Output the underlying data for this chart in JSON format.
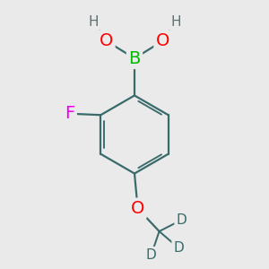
{
  "background_color": "#eaeaea",
  "bond_color": "#3a6b6b",
  "bond_width": 1.6,
  "atom_colors": {
    "B": "#00bb00",
    "O": "#ff0000",
    "F": "#ee00ee",
    "H": "#607070",
    "C": "#3a6b6b",
    "D": "#3a6b6b"
  },
  "font_size_large": 14,
  "font_size_medium": 12,
  "font_size_small": 11
}
